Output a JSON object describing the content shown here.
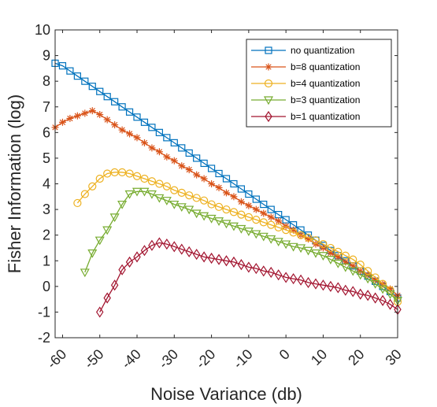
{
  "chart_data": {
    "type": "line",
    "xlabel": "Noise Variance (db)",
    "ylabel": "Fisher Information (log)",
    "xlim": [
      -62,
      30
    ],
    "ylim": [
      -2,
      10
    ],
    "xticks": [
      -60,
      -50,
      -40,
      -30,
      -20,
      -10,
      0,
      10,
      20,
      30
    ],
    "yticks": [
      -2,
      -1,
      0,
      1,
      2,
      3,
      4,
      5,
      6,
      7,
      8,
      9,
      10
    ],
    "grid": false,
    "legend_position": "top-right",
    "series": [
      {
        "name": "no quantization",
        "color": "#0072BD",
        "marker": "square",
        "x": [
          -62,
          -60,
          -58,
          -56,
          -54,
          -52,
          -50,
          -48,
          -46,
          -44,
          -42,
          -40,
          -38,
          -36,
          -34,
          -32,
          -30,
          -28,
          -26,
          -24,
          -22,
          -20,
          -18,
          -16,
          -14,
          -12,
          -10,
          -8,
          -6,
          -4,
          -2,
          0,
          2,
          4,
          6,
          8,
          10,
          12,
          14,
          16,
          18,
          20,
          22,
          24,
          26,
          28,
          30
        ],
        "y": [
          8.7,
          8.6,
          8.4,
          8.2,
          8.0,
          7.8,
          7.6,
          7.4,
          7.2,
          7.0,
          6.8,
          6.6,
          6.4,
          6.2,
          6.0,
          5.8,
          5.6,
          5.4,
          5.2,
          5.0,
          4.8,
          4.6,
          4.4,
          4.2,
          4.0,
          3.8,
          3.6,
          3.4,
          3.2,
          3.0,
          2.8,
          2.6,
          2.4,
          2.2,
          2.0,
          1.8,
          1.6,
          1.4,
          1.2,
          1.0,
          0.8,
          0.6,
          0.4,
          0.2,
          0.0,
          -0.2,
          -0.45
        ]
      },
      {
        "name": "b=8 quantization",
        "color": "#D95319",
        "marker": "asterisk",
        "x": [
          -62,
          -60,
          -58,
          -56,
          -54,
          -52,
          -50,
          -48,
          -46,
          -44,
          -42,
          -40,
          -38,
          -36,
          -34,
          -32,
          -30,
          -28,
          -26,
          -24,
          -22,
          -20,
          -18,
          -16,
          -14,
          -12,
          -10,
          -8,
          -6,
          -4,
          -2,
          0,
          2,
          4,
          6,
          8,
          10,
          12,
          14,
          16,
          18,
          20,
          22,
          24,
          26,
          28,
          30
        ],
        "y": [
          6.2,
          6.4,
          6.55,
          6.65,
          6.75,
          6.85,
          6.7,
          6.5,
          6.3,
          6.1,
          5.95,
          5.8,
          5.6,
          5.4,
          5.25,
          5.05,
          4.9,
          4.7,
          4.55,
          4.35,
          4.2,
          4.0,
          3.85,
          3.65,
          3.5,
          3.3,
          3.15,
          3.0,
          2.85,
          2.7,
          2.55,
          2.35,
          2.2,
          2.0,
          1.85,
          1.65,
          1.5,
          1.3,
          1.15,
          0.95,
          0.8,
          0.6,
          0.45,
          0.25,
          0.1,
          -0.1,
          -0.35
        ]
      },
      {
        "name": "b=4 quantization",
        "color": "#EDB120",
        "marker": "circle",
        "x": [
          -56,
          -54,
          -52,
          -50,
          -48,
          -46,
          -44,
          -42,
          -40,
          -38,
          -36,
          -34,
          -32,
          -30,
          -28,
          -26,
          -24,
          -22,
          -20,
          -18,
          -16,
          -14,
          -12,
          -10,
          -8,
          -6,
          -4,
          -2,
          0,
          2,
          4,
          6,
          8,
          10,
          12,
          14,
          16,
          18,
          20,
          22,
          24,
          26,
          28,
          30
        ],
        "y": [
          3.25,
          3.6,
          3.9,
          4.2,
          4.4,
          4.45,
          4.45,
          4.4,
          4.3,
          4.2,
          4.1,
          4.0,
          3.9,
          3.75,
          3.65,
          3.55,
          3.45,
          3.35,
          3.2,
          3.1,
          3.0,
          2.9,
          2.8,
          2.7,
          2.6,
          2.5,
          2.4,
          2.3,
          2.2,
          2.1,
          2.0,
          1.9,
          1.8,
          1.65,
          1.5,
          1.35,
          1.2,
          1.05,
          0.85,
          0.6,
          0.35,
          0.1,
          -0.15,
          -0.6
        ]
      },
      {
        "name": "b=3 quantization",
        "color": "#77AC30",
        "marker": "triangle-down",
        "x": [
          -54,
          -52,
          -50,
          -48,
          -46,
          -44,
          -42,
          -40,
          -38,
          -36,
          -34,
          -32,
          -30,
          -28,
          -26,
          -24,
          -22,
          -20,
          -18,
          -16,
          -14,
          -12,
          -10,
          -8,
          -6,
          -4,
          -2,
          0,
          2,
          4,
          6,
          8,
          10,
          12,
          14,
          16,
          18,
          20,
          22,
          24,
          26,
          28,
          30
        ],
        "y": [
          0.55,
          1.3,
          1.8,
          2.2,
          2.7,
          3.2,
          3.6,
          3.7,
          3.7,
          3.6,
          3.45,
          3.35,
          3.2,
          3.1,
          3.0,
          2.85,
          2.75,
          2.65,
          2.55,
          2.45,
          2.35,
          2.25,
          2.15,
          2.05,
          1.95,
          1.85,
          1.75,
          1.65,
          1.55,
          1.5,
          1.4,
          1.3,
          1.2,
          1.05,
          0.9,
          0.75,
          0.6,
          0.45,
          0.3,
          0.1,
          -0.1,
          -0.3,
          -0.55
        ]
      },
      {
        "name": "b=1 quantization",
        "color": "#A2142F",
        "marker": "diamond",
        "x": [
          -50,
          -48,
          -46,
          -44,
          -42,
          -40,
          -38,
          -36,
          -34,
          -32,
          -30,
          -28,
          -26,
          -24,
          -22,
          -20,
          -18,
          -16,
          -14,
          -12,
          -10,
          -8,
          -6,
          -4,
          -2,
          0,
          2,
          4,
          6,
          8,
          10,
          12,
          14,
          16,
          18,
          20,
          22,
          24,
          26,
          28,
          30
        ],
        "y": [
          -1.0,
          -0.45,
          0.05,
          0.65,
          0.95,
          1.15,
          1.4,
          1.6,
          1.7,
          1.65,
          1.55,
          1.45,
          1.35,
          1.25,
          1.15,
          1.1,
          1.05,
          1.0,
          0.95,
          0.85,
          0.75,
          0.7,
          0.6,
          0.55,
          0.45,
          0.35,
          0.3,
          0.25,
          0.15,
          0.1,
          0.05,
          0.0,
          -0.05,
          -0.15,
          -0.2,
          -0.3,
          -0.35,
          -0.45,
          -0.55,
          -0.7,
          -0.9
        ]
      }
    ]
  }
}
